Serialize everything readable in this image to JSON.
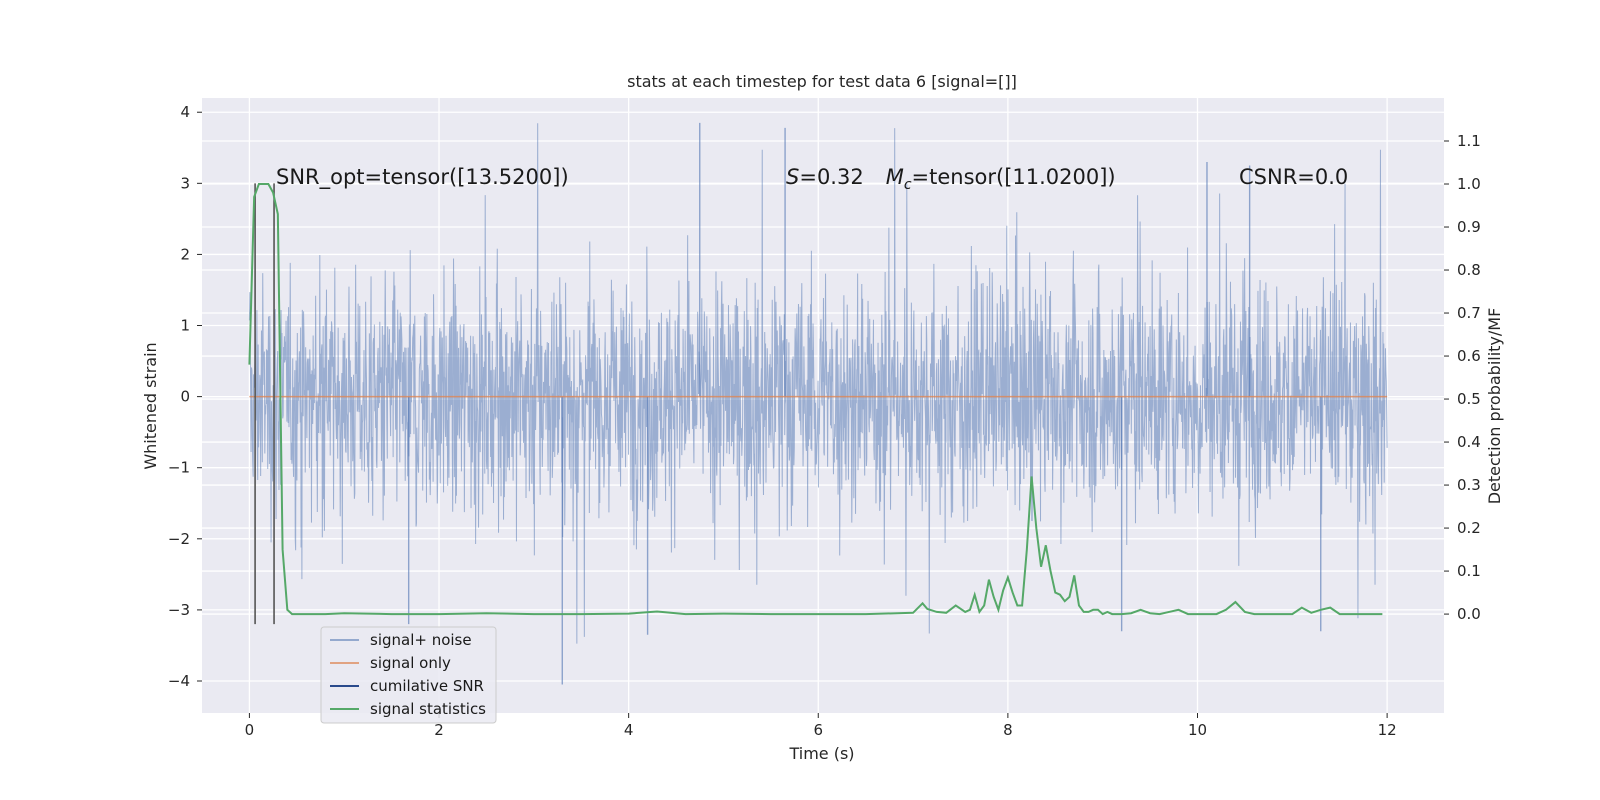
{
  "chart_data": {
    "type": "line",
    "title": "stats at each timestep for test data 6 [signal=[]]",
    "xlabel": "Time (s)",
    "ylabel": "Whitened strain",
    "ylabel_right": "Detection probability/MF",
    "xlim": [
      -0.5,
      12.6
    ],
    "ylim": [
      -4.45,
      4.2
    ],
    "ylim_right": [
      -0.23,
      1.2
    ],
    "x_ticks": [
      0,
      2,
      4,
      6,
      8,
      10,
      12
    ],
    "y_ticks": [
      -4,
      -3,
      -2,
      -1,
      0,
      1,
      2,
      3,
      4
    ],
    "y_right_ticks": [
      0.0,
      0.1,
      0.2,
      0.3,
      0.4,
      0.5,
      0.6,
      0.7,
      0.8,
      0.9,
      1.0,
      1.1
    ],
    "annotations": {
      "snr_opt": "SNR_opt=tensor([13.5200])",
      "s_label": "S",
      "s_value": "=0.32",
      "mc_label": "M",
      "mc_sub": "c",
      "mc_value": "=tensor([11.0200])",
      "csnr": "CSNR=0.0"
    },
    "series": [
      {
        "name": "signal+ noise",
        "color": "#4c72b0",
        "description": "whitened strain, noise-like, dense band roughly within ±2 with spikes to ±3.8",
        "x_range": [
          0,
          12
        ],
        "typical_amplitude": 1.2,
        "spike_max": 3.85,
        "spike_min": -4.05
      },
      {
        "name": "signal only",
        "color": "#dd8452",
        "x": [
          0,
          12
        ],
        "y": [
          0,
          0
        ]
      },
      {
        "name": "cumilative SNR",
        "color": "#2a4a8c",
        "values": []
      },
      {
        "name": "signal statistics",
        "color": "#55a868",
        "axis": "right",
        "x": [
          0.0,
          0.05,
          0.1,
          0.15,
          0.2,
          0.25,
          0.3,
          0.35,
          0.4,
          0.45,
          0.5,
          0.6,
          0.8,
          1.0,
          1.5,
          2.0,
          2.5,
          3.0,
          3.5,
          4.0,
          4.3,
          4.6,
          5.0,
          5.5,
          6.0,
          6.5,
          7.0,
          7.1,
          7.15,
          7.25,
          7.35,
          7.45,
          7.55,
          7.6,
          7.65,
          7.7,
          7.75,
          7.8,
          7.85,
          7.9,
          7.95,
          8.0,
          8.05,
          8.1,
          8.15,
          8.2,
          8.25,
          8.3,
          8.35,
          8.4,
          8.45,
          8.5,
          8.55,
          8.6,
          8.65,
          8.7,
          8.75,
          8.8,
          8.85,
          8.9,
          8.95,
          9.0,
          9.05,
          9.1,
          9.2,
          9.3,
          9.4,
          9.5,
          9.6,
          9.7,
          9.8,
          9.9,
          10.0,
          10.2,
          10.3,
          10.4,
          10.5,
          10.6,
          10.8,
          11.0,
          11.1,
          11.2,
          11.3,
          11.4,
          11.5,
          11.6,
          11.8,
          11.95
        ],
        "y": [
          0.58,
          0.97,
          1.0,
          1.0,
          1.0,
          0.98,
          0.93,
          0.15,
          0.01,
          0.0,
          0.0,
          0.0,
          0.0,
          0.002,
          0.0,
          0.0,
          0.002,
          0.0,
          0.0,
          0.001,
          0.006,
          0.0,
          0.001,
          0.0,
          0.0,
          0.0,
          0.003,
          0.025,
          0.012,
          0.005,
          0.003,
          0.02,
          0.005,
          0.01,
          0.045,
          0.005,
          0.02,
          0.08,
          0.04,
          0.01,
          0.055,
          0.085,
          0.05,
          0.02,
          0.02,
          0.15,
          0.32,
          0.2,
          0.11,
          0.16,
          0.1,
          0.05,
          0.045,
          0.03,
          0.04,
          0.09,
          0.02,
          0.005,
          0.005,
          0.01,
          0.01,
          0.0,
          0.005,
          0.0,
          0.0,
          0.002,
          0.01,
          0.002,
          0.0,
          0.005,
          0.01,
          0.0,
          0.0,
          0.0,
          0.01,
          0.028,
          0.005,
          0.0,
          0.0,
          0.0,
          0.015,
          0.003,
          0.01,
          0.015,
          0.0,
          0.0,
          0.0,
          0.0
        ]
      }
    ],
    "vertical_lines": [
      0.06,
      0.26
    ],
    "vertical_lines_color": "#555555",
    "legend_position": "lower-left"
  }
}
